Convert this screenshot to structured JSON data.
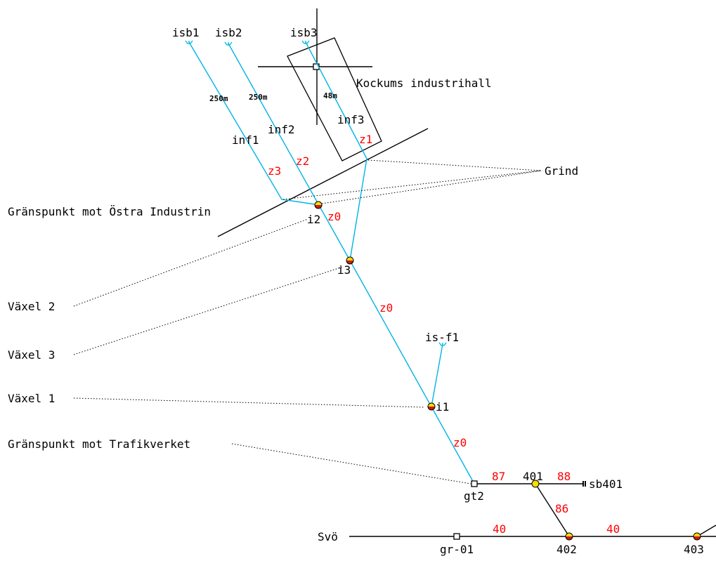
{
  "colors": {
    "track": "#000000",
    "industry_track": "#00b4e6",
    "zone_label": "#ff0000",
    "switch_top": "#ffdd00",
    "switch_bottom": "#cc1a1a"
  },
  "points": {
    "isb1": "isb1",
    "isb2": "isb2",
    "isb3": "isb3",
    "inf1": "inf1",
    "inf2": "inf2",
    "inf3": "inf3",
    "i1": "i1",
    "i2": "i2",
    "i3": "i3",
    "is_f1": "is-f1",
    "gt2": "gt2",
    "gr01": "gr-01",
    "p401": "401",
    "p402": "402",
    "p403": "403",
    "sb401": "sb401",
    "svo": "Svö"
  },
  "distances": {
    "d1": "250m",
    "d2": "250m",
    "d3": "48m"
  },
  "zones": {
    "z0a": "z0",
    "z0b": "z0",
    "z0c": "z0",
    "z1": "z1",
    "z2": "z2",
    "z3": "z3",
    "n87": "87",
    "n88": "88",
    "n86": "86",
    "n40a": "40",
    "n40b": "40"
  },
  "annotations": {
    "hall": "Kockums industrihall",
    "grind": "Grind",
    "border_east": "Gränspunkt mot Östra Industrin",
    "switch2": "Växel 2",
    "switch3": "Växel 3",
    "switch1": "Växel 1",
    "border_trv": "Gränspunkt mot Trafikverket"
  }
}
